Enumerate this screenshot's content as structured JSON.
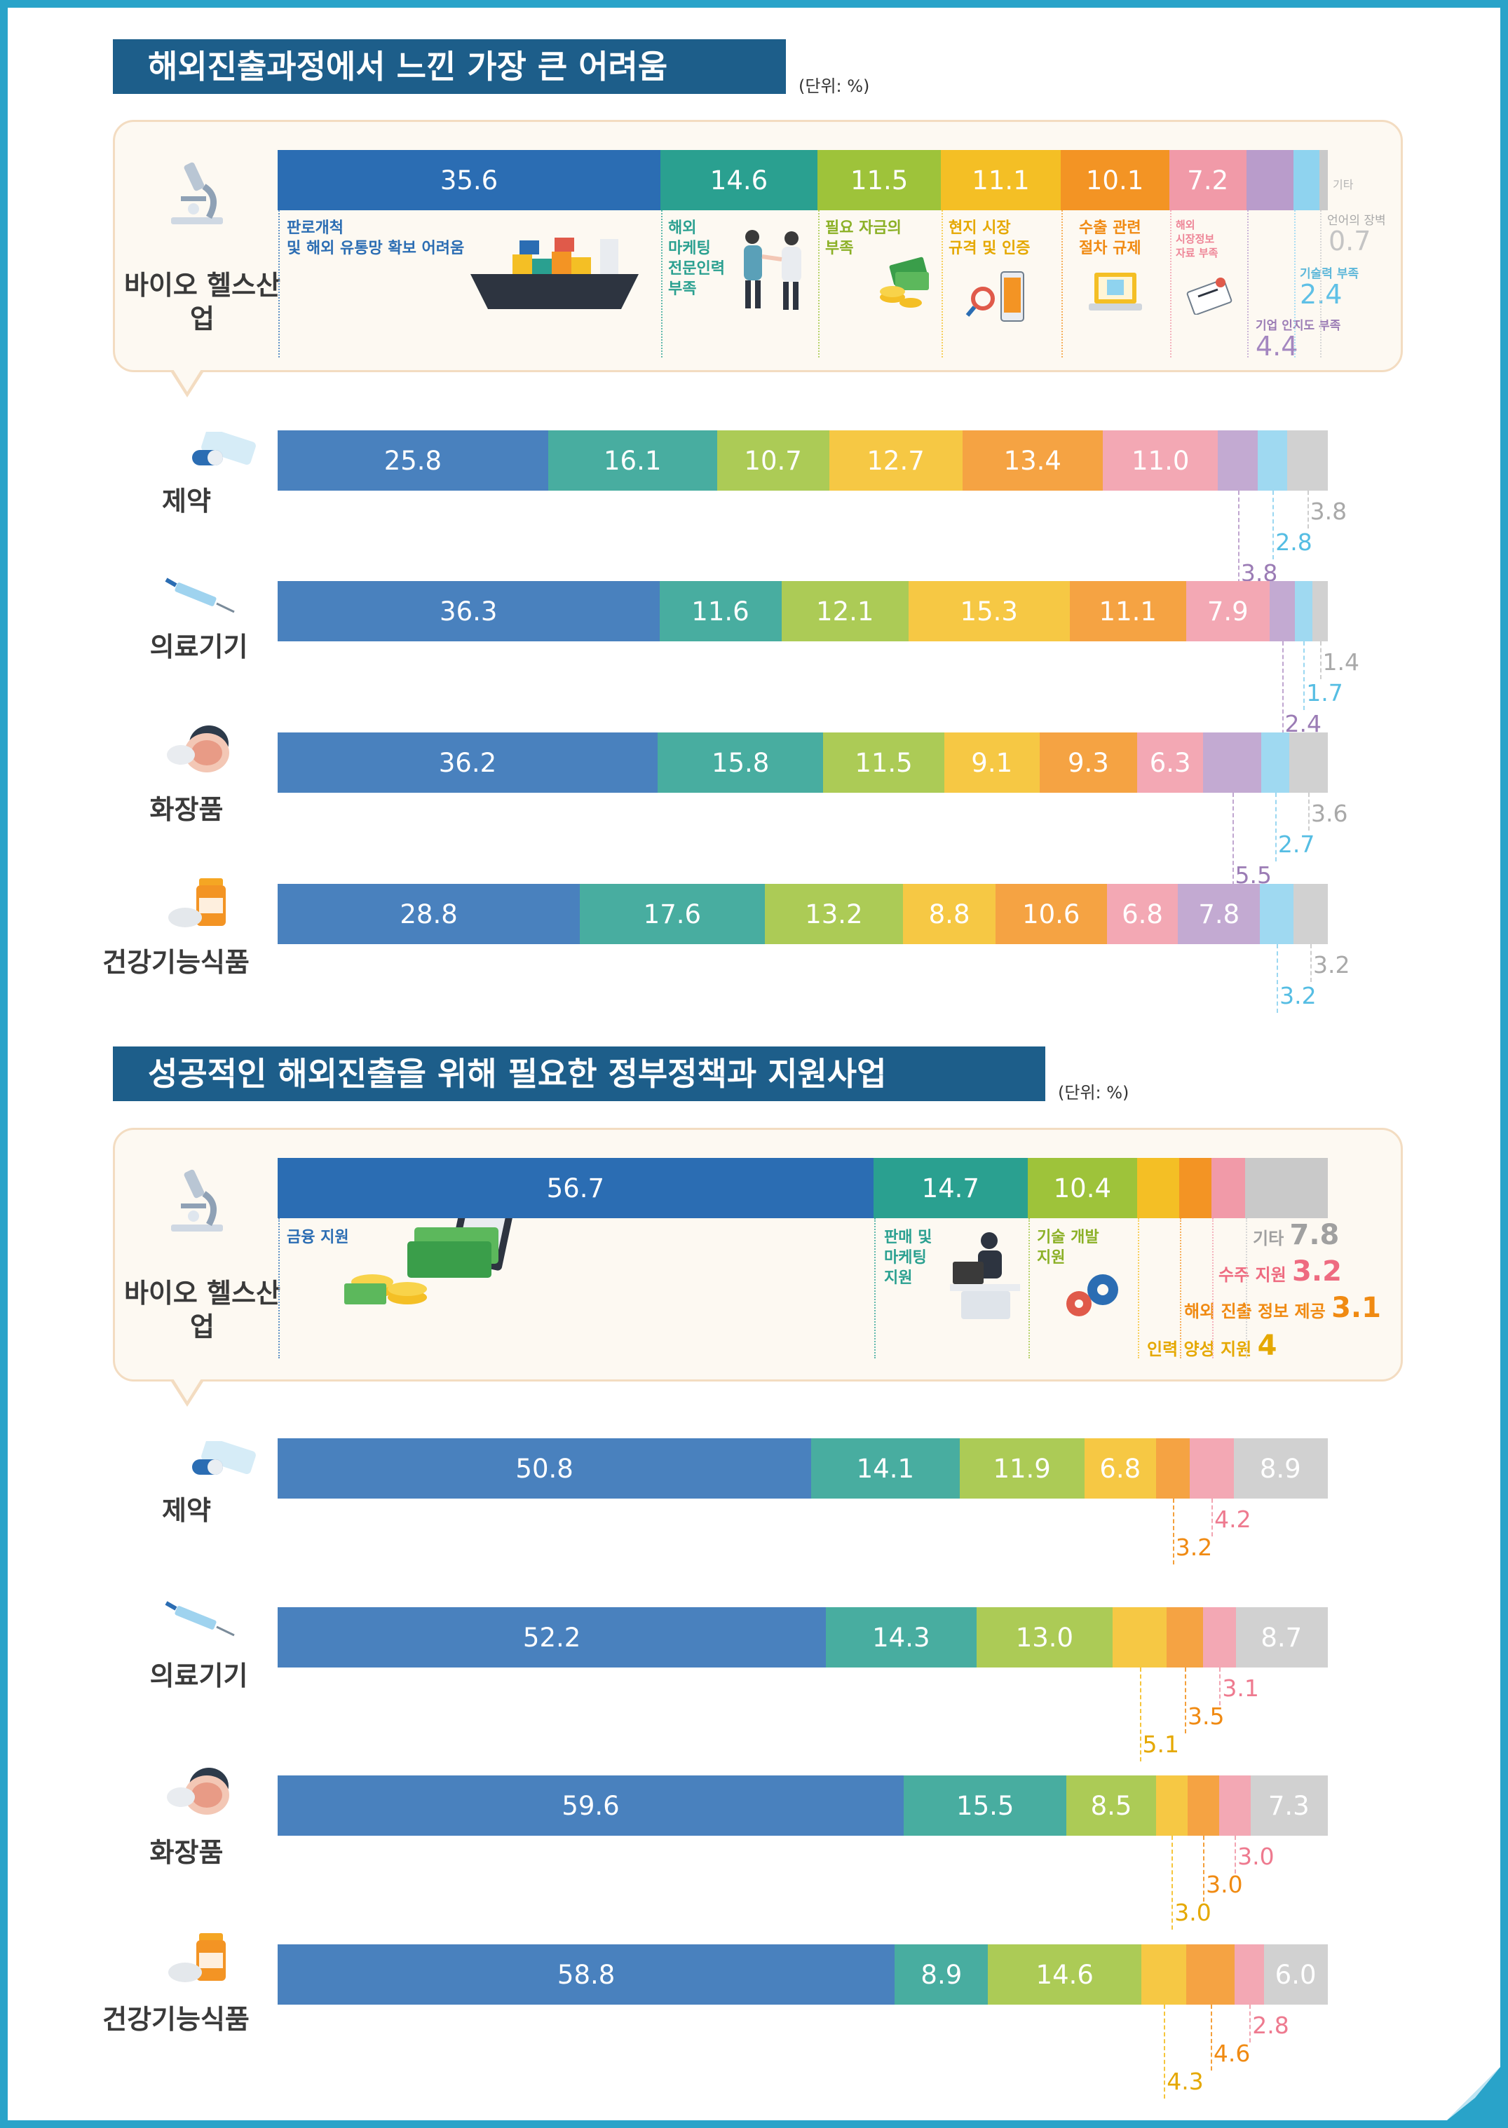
{
  "chart_data": [
    {
      "type": "bar",
      "orientation": "horizontal",
      "stacked": true,
      "title": "해외진출과정에서 느낀 가장 큰 어려움",
      "unit": "(단위: %)",
      "categories": [
        "바이오 헬스산업",
        "제약",
        "의료기기",
        "화장품",
        "건강기능식품"
      ],
      "series": [
        {
          "name": "판로개척 및 해외 유통망 확보 어려움",
          "values": [
            35.6,
            25.8,
            36.3,
            36.2,
            28.8
          ],
          "color": "#2b6db3"
        },
        {
          "name": "해외 마케팅 전문인력 부족",
          "values": [
            14.6,
            16.1,
            11.6,
            15.8,
            17.6
          ],
          "color": "#2aa090"
        },
        {
          "name": "필요 자금의 부족",
          "values": [
            11.5,
            10.7,
            12.1,
            11.5,
            13.2
          ],
          "color": "#9ec33a"
        },
        {
          "name": "현지 시장 규격 및 인증",
          "values": [
            11.1,
            12.7,
            15.3,
            9.1,
            8.8
          ],
          "color": "#f4bf25"
        },
        {
          "name": "수출 관련 절차 규제",
          "values": [
            10.1,
            13.4,
            11.1,
            9.3,
            10.6
          ],
          "color": "#f39424"
        },
        {
          "name": "해외 시장정보 자료 부족",
          "values": [
            7.2,
            11.0,
            7.9,
            6.3,
            6.8
          ],
          "color": "#f19aa8"
        },
        {
          "name": "기업 인지도 부족",
          "values": [
            4.4,
            3.8,
            2.4,
            5.5,
            7.8
          ],
          "color": "#b99ccb"
        },
        {
          "name": "기술력 부족",
          "values": [
            2.4,
            2.8,
            1.7,
            2.7,
            3.2
          ],
          "color": "#8fd3ef"
        },
        {
          "name": "언어의 장벽",
          "values": [
            0.7,
            null,
            null,
            null,
            null
          ],
          "color": "#c9c9c9"
        },
        {
          "name": "기타",
          "values": [
            null,
            3.8,
            1.4,
            3.6,
            3.2
          ],
          "color": "#c9c9c9"
        }
      ]
    },
    {
      "type": "bar",
      "orientation": "horizontal",
      "stacked": true,
      "title": "성공적인 해외진출을 위해 필요한 정부정책과 지원사업",
      "unit": "(단위: %)",
      "categories": [
        "바이오 헬스산업",
        "제약",
        "의료기기",
        "화장품",
        "건강기능식품"
      ],
      "series": [
        {
          "name": "금융 지원",
          "values": [
            56.7,
            50.8,
            52.2,
            59.6,
            58.8
          ],
          "color": "#2b6db3"
        },
        {
          "name": "판매 및 마케팅 지원",
          "values": [
            14.7,
            14.1,
            14.3,
            15.5,
            8.9
          ],
          "color": "#2aa090"
        },
        {
          "name": "기술 개발 지원",
          "values": [
            10.4,
            11.9,
            13.0,
            8.5,
            14.6
          ],
          "color": "#9ec33a"
        },
        {
          "name": "인력 양성 지원",
          "values": [
            4.0,
            6.8,
            5.1,
            3.0,
            4.3
          ],
          "color": "#f4bf25"
        },
        {
          "name": "해외 진출 정보 제공",
          "values": [
            3.1,
            3.2,
            3.5,
            3.0,
            4.6
          ],
          "color": "#f39424"
        },
        {
          "name": "수주 지원",
          "values": [
            3.2,
            4.2,
            3.1,
            3.0,
            2.8
          ],
          "color": "#f19aa8"
        },
        {
          "name": "기타",
          "values": [
            7.8,
            8.9,
            8.7,
            7.3,
            6.0
          ],
          "color": "#c9c9c9"
        }
      ]
    }
  ],
  "rows": [
    {
      "label": "바이오\n헬스산업"
    },
    {
      "label": "제약"
    },
    {
      "label": "의료기기"
    },
    {
      "label": "화장품"
    },
    {
      "label": "건강기능식품"
    }
  ],
  "label_texts": {
    "s1": {
      "판로개척": "판로개척\n및 해외 유통망 확보 어려움",
      "마케팅": "해외\n마케팅\n전문인력\n부족",
      "자금": "필요 자금의\n부족",
      "규격": "현지 시장\n규격 및 인증",
      "절차": "수출 관련\n절차 규제",
      "정보": "해외\n시장정보\n자료 부족",
      "기타": "기타",
      "언어": "언어의 장벽",
      "기술": "기술력 부족",
      "인지도": "기업 인지도 부족"
    },
    "s2": {
      "금융": "금융 지원",
      "판매": "판매 및\n마케팅\n지원",
      "기술": "기술 개발\n지원",
      "기타": "기타",
      "수주": "수주 지원",
      "정보": "해외 진출 정보 제공",
      "인력": "인력 양성 지원"
    }
  },
  "icons": [
    "microscope-icon",
    "pill-blister-icon",
    "syringe-icon",
    "compact-powder-icon",
    "supplement-bottle-icon",
    "cargo-ship-icon",
    "handshake-icon",
    "money-stack-icon",
    "magnifier-phone-icon",
    "laptop-document-icon",
    "clipboard-icon",
    "money-computer-icon",
    "office-worker-icon",
    "gears-icon"
  ]
}
